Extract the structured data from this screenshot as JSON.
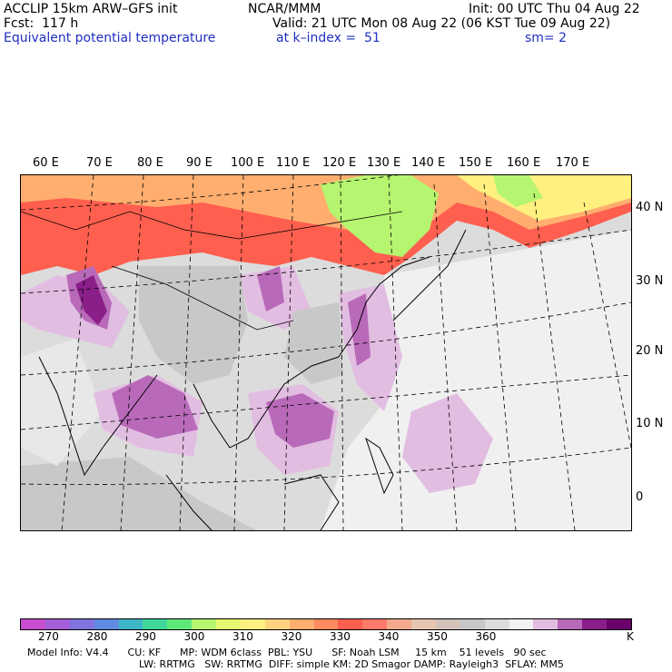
{
  "header": {
    "left1": "ACCLIP 15km ARW–GFS init",
    "left2": "Fcst:  117 h",
    "left3": "Equivalent potential temperature",
    "center1": "NCAR/MMM",
    "center2": "Valid: 21 UTC Mon 08 Aug 22 (06 KST Tue 09 Aug 22)",
    "center3": "at k–index =  51",
    "right1": "Init: 00 UTC Thu 04 Aug 22",
    "right3": "sm= 2"
  },
  "lon_labels": [
    "60 E",
    "70 E",
    "80 E",
    "90 E",
    "100 E",
    "110 E",
    "120 E",
    "130 E",
    "140 E",
    "150 E",
    "160 E",
    "170 E"
  ],
  "lat_labels": [
    "40 N",
    "30 N",
    "20 N",
    "10 N",
    "0"
  ],
  "colorbar": {
    "colors": [
      "#c74fcf",
      "#a45fd8",
      "#8073e0",
      "#5f8be0",
      "#3fb6c8",
      "#3fd89a",
      "#5fe87a",
      "#b6f56f",
      "#e6f86f",
      "#fff07f",
      "#ffd27f",
      "#ffae6f",
      "#ff8a5f",
      "#ff5f4f",
      "#ff7a6a",
      "#f2a98e",
      "#e6c6b0",
      "#d2c2b8",
      "#c8c8c8",
      "#dcdcdc",
      "#f2f2f2",
      "#e2bde2",
      "#b86ab8",
      "#8a1f8a",
      "#6a006a"
    ],
    "ticks": [
      "270",
      "280",
      "290",
      "300",
      "310",
      "320",
      "330",
      "340",
      "350",
      "360"
    ],
    "unit": "K"
  },
  "footer": {
    "line1": "Model Info: V4.4      CU: KF      MP: WDM 6class  PBL: YSU      SF: Noah LSM     15 km    51 levels   90 sec",
    "line2": "LW: RRTMG   SW: RRTMG  DIFF: simple KM: 2D Smagor DAMP: Rayleigh3  SFLAY: MM5"
  },
  "map": {
    "fill_colors": {
      "hot_red": "#ff5f4f",
      "orange": "#ffae6f",
      "yellow": "#fff07f",
      "green": "#b6f56f",
      "gray": "#c8c8c8",
      "light": "#f0f0f0",
      "light_purple": "#e2bde2",
      "purple": "#b86ab8",
      "dark_purple": "#8a1f8a"
    }
  }
}
